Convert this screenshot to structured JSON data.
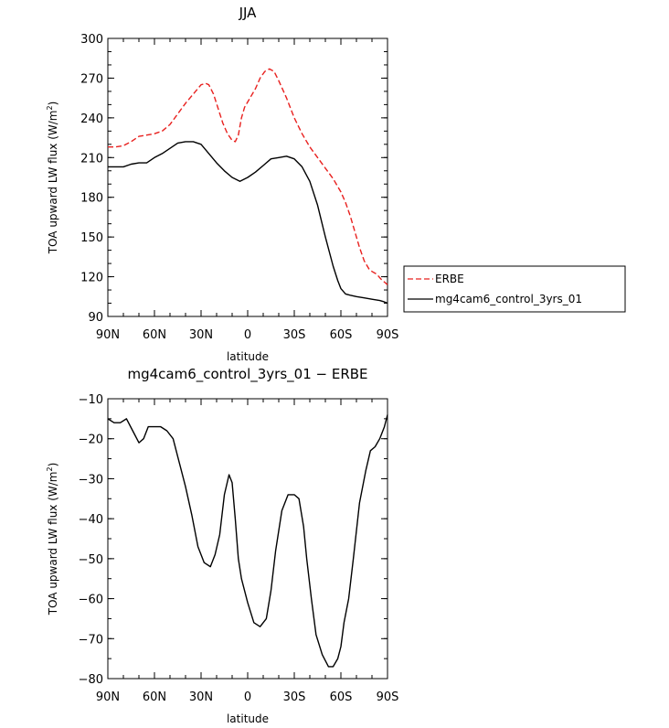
{
  "chart_data": [
    {
      "type": "line",
      "title": "JJA",
      "xlabel": "latitude",
      "ylabel_text": "TOA upward LW flux (W/m",
      "ylabel_sup": "2",
      "ylabel_close": ")",
      "xlim": [
        90,
        -90
      ],
      "ylim": [
        90,
        300
      ],
      "xticks": [
        90,
        60,
        30,
        0,
        -30,
        -60,
        -90
      ],
      "xtick_labels": [
        "90N",
        "60N",
        "30N",
        "0",
        "30S",
        "60S",
        "90S"
      ],
      "yticks": [
        90,
        120,
        150,
        180,
        210,
        240,
        270,
        300
      ],
      "ytick_labels": [
        "90",
        "120",
        "150",
        "180",
        "210",
        "240",
        "270",
        "300"
      ],
      "legend": "right",
      "series": [
        {
          "name": "ERBE",
          "color": "#e8201e",
          "dash": "dashed",
          "x": [
            90,
            85,
            80,
            75,
            70,
            65,
            60,
            55,
            50,
            45,
            40,
            35,
            30,
            27,
            25,
            22,
            19,
            16,
            13,
            10,
            8,
            6,
            4,
            2,
            0,
            -2,
            -5,
            -8,
            -11,
            -14,
            -17,
            -20,
            -25,
            -30,
            -35,
            -40,
            -45,
            -50,
            -55,
            -60,
            -63,
            -66,
            -69,
            -72,
            -75,
            -78,
            -80,
            -83,
            -86,
            -88,
            -90
          ],
          "y": [
            218,
            218,
            219,
            222,
            226,
            227,
            228,
            230,
            235,
            243,
            251,
            258,
            265,
            266,
            265,
            258,
            247,
            236,
            228,
            223,
            222,
            227,
            240,
            248,
            252,
            256,
            262,
            270,
            275,
            277,
            275,
            268,
            255,
            240,
            228,
            218,
            210,
            202,
            194,
            184,
            176,
            166,
            154,
            142,
            132,
            126,
            124,
            122,
            118,
            116,
            114
          ]
        },
        {
          "name": "mg4cam6_control_3yrs_01",
          "color": "#000000",
          "dash": "solid",
          "x": [
            90,
            85,
            80,
            75,
            70,
            65,
            60,
            55,
            50,
            45,
            40,
            35,
            30,
            25,
            20,
            15,
            10,
            5,
            0,
            -5,
            -10,
            -15,
            -20,
            -25,
            -30,
            -35,
            -40,
            -45,
            -50,
            -55,
            -58,
            -60,
            -63,
            -66,
            -70,
            -75,
            -80,
            -85,
            -88,
            -90
          ],
          "y": [
            203,
            203,
            203,
            205,
            206,
            206,
            210,
            213,
            217,
            221,
            222,
            222,
            220,
            213,
            206,
            200,
            195,
            192,
            195,
            199,
            204,
            209,
            210,
            211,
            209,
            203,
            192,
            174,
            150,
            128,
            117,
            111,
            107,
            106,
            105,
            104,
            103,
            102,
            101,
            100
          ]
        }
      ]
    },
    {
      "type": "line",
      "title": "mg4cam6_control_3yrs_01 − ERBE",
      "xlabel": "latitude",
      "ylabel_text": "TOA upward LW flux (W/m",
      "ylabel_sup": "2",
      "ylabel_close": ")",
      "xlim": [
        90,
        -90
      ],
      "ylim": [
        -80,
        -10
      ],
      "xticks": [
        90,
        60,
        30,
        0,
        -30,
        -60,
        -90
      ],
      "xtick_labels": [
        "90N",
        "60N",
        "30N",
        "0",
        "30S",
        "60S",
        "90S"
      ],
      "yticks": [
        -80,
        -70,
        -60,
        -50,
        -40,
        -30,
        -20,
        -10
      ],
      "ytick_labels": [
        "−80",
        "−70",
        "−60",
        "−50",
        "−40",
        "−30",
        "−20",
        "−10"
      ],
      "series": [
        {
          "color": "#000000",
          "dash": "solid",
          "x": [
            90,
            86,
            82,
            78,
            74,
            70,
            67,
            64,
            60,
            56,
            52,
            48,
            44,
            40,
            36,
            32,
            28,
            24,
            21,
            18,
            15,
            12,
            10,
            8,
            6,
            4,
            2,
            0,
            -4,
            -8,
            -12,
            -15,
            -18,
            -22,
            -26,
            -30,
            -33,
            -36,
            -38,
            -41,
            -44,
            -48,
            -52,
            -55,
            -58,
            -60,
            -62,
            -65,
            -68,
            -72,
            -76,
            -79,
            -82,
            -85,
            -88,
            -90
          ],
          "y": [
            -15,
            -16,
            -16,
            -15,
            -18,
            -21,
            -20,
            -17,
            -17,
            -17,
            -18,
            -20,
            -26,
            -32,
            -39,
            -47,
            -51,
            -52,
            -49,
            -44,
            -34,
            -29,
            -31,
            -40,
            -50,
            -55,
            -58,
            -61,
            -66,
            -67,
            -65,
            -58,
            -48,
            -38,
            -34,
            -34,
            -35,
            -42,
            -50,
            -60,
            -69,
            -74,
            -77,
            -77,
            -75,
            -72,
            -66,
            -60,
            -50,
            -36,
            -28,
            -23,
            -22,
            -20,
            -17,
            -14
          ]
        }
      ]
    }
  ]
}
